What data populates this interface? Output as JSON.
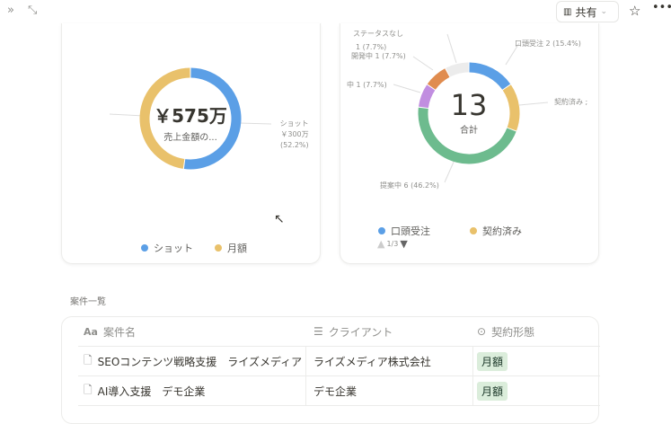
{
  "topbar": {
    "share_label": "共有",
    "icons": [
      "double-chevron-right-icon",
      "expand-icon",
      "building-icon",
      "chevron-down-icon",
      "star-icon",
      "more-icon"
    ]
  },
  "chart_data": [
    {
      "type": "pie",
      "donut": true,
      "center_value": "￥575万",
      "center_label": "売上金額の...",
      "slices": [
        {
          "name": "ショット",
          "value": 300,
          "percent": 52.2,
          "color": "#5b9fe6",
          "label_value": "￥300万",
          "label_percent": "(52.2%)"
        },
        {
          "name": "月額",
          "value": 275,
          "percent": 47.8,
          "color": "#e9c16b"
        }
      ],
      "legend": [
        "ショット",
        "月額"
      ],
      "legend_position": "bottom"
    },
    {
      "type": "pie",
      "donut": true,
      "center_value": "13",
      "center_label": "合計",
      "slices": [
        {
          "name": "口頭受注",
          "value": 2,
          "percent": 15.4,
          "color": "#5b9fe6",
          "label": "口頭受注  2 (15.4%)"
        },
        {
          "name": "契約済み",
          "value": 2,
          "percent": 15.4,
          "color": "#e9c16b",
          "label": "契約済み ;"
        },
        {
          "name": "提案中",
          "value": 6,
          "percent": 46.2,
          "color": "#6dbb8e",
          "label": "提案中  6 (46.2%)"
        },
        {
          "name": "中",
          "value": 1,
          "percent": 7.7,
          "color": "#c18ee0",
          "label": "中  1 (7.7%)"
        },
        {
          "name": "開発中",
          "value": 1,
          "percent": 7.7,
          "color": "#e08c4f",
          "label": "開発中  1 (7.7%)"
        },
        {
          "name": "ステータスなし",
          "value": 1,
          "percent": 7.7,
          "color": "#ececec",
          "label": "ステータスなし",
          "label2": "1 (7.7%)"
        }
      ],
      "legend": [
        "口頭受注",
        "契約済み"
      ],
      "legend_page": "1/3",
      "legend_position": "bottom"
    }
  ],
  "section_title": "案件一覧",
  "table": {
    "headers": [
      "案件名",
      "クライアント",
      "契約形態"
    ],
    "rows": [
      [
        "SEOコンテンツ戦略支援　ライズメディア",
        "ライズメディア株式会社",
        "月額"
      ],
      [
        "AI導入支援　デモ企業",
        "デモ企業",
        "月額"
      ]
    ]
  }
}
